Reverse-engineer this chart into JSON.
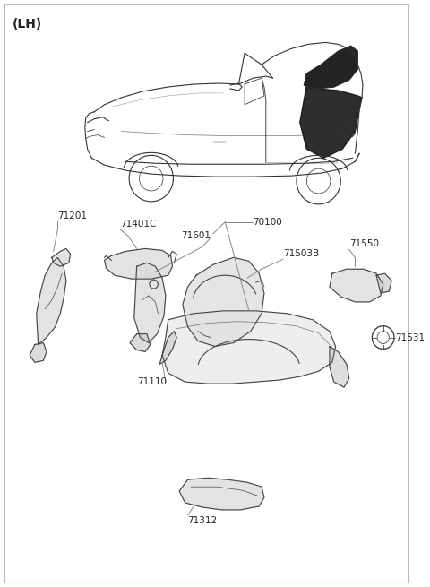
{
  "title": "(LH)",
  "background_color": "#ffffff",
  "line_color": "#888888",
  "text_color": "#222222",
  "font_size_title": 10,
  "font_size_labels": 7.5,
  "figsize": [
    4.8,
    6.55
  ],
  "dpi": 100,
  "border_color": "#cccccc",
  "car_color": "#333333",
  "part_color": "#444444",
  "part_fill": "#d8d8d8",
  "black_fill": "#111111"
}
